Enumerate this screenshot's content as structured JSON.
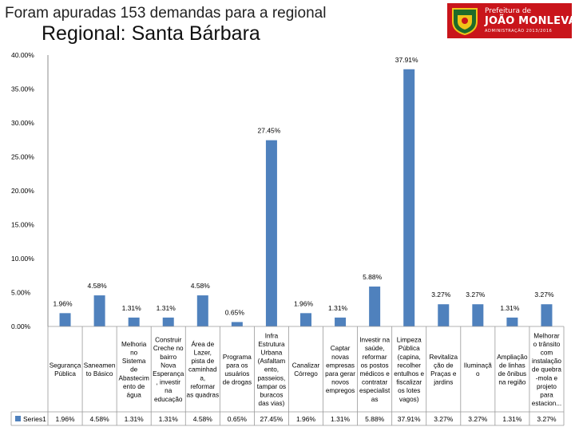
{
  "header": {
    "headline": "Foram apuradas 153 demandas para a regional",
    "title": "Regional: Santa Bárbara"
  },
  "logo": {
    "prefix": "Prefeitura de",
    "city": "JOÃO MONLEVADE",
    "subline": "ADMINISTRAÇÃO 2013/2016"
  },
  "chart_data": {
    "type": "bar",
    "ylim": [
      0,
      40
    ],
    "yticks": [
      0,
      5,
      10,
      15,
      20,
      25,
      30,
      35,
      40
    ],
    "ytick_labels": [
      "0.00%",
      "5.00%",
      "10.00%",
      "15.00%",
      "20.00%",
      "25.00%",
      "30.00%",
      "35.00%",
      "40.00%"
    ],
    "grid": false,
    "legend_position": "bottom-left data table",
    "bar_color": "#4f81bd",
    "categories": [
      "Segurança Pública",
      "Saneamento Básico",
      "Melhoria no Sistema de Abastecimento de água",
      "Construir Creche no bairro Nova Esperança, investir na educação",
      "Área de Lazer, pista de caminhada, reformar as quadras",
      "Programa para os usuários de drogas",
      "Infra Estrutura Urbana (Asfaltamento, passeios, tampar os buracos das vias)",
      "Canalizar Córrego",
      "Captar novas empresas para gerar novos empregos",
      "Investir na saúde, reformar os postos médicos e contratar especialistas",
      "Limpeza Pública (capina, recolher entulhos e fiscalizar os lotes vagos)",
      "Revitalização de Praças e jardins",
      "Iluminação",
      "Ampliação de linhas de ônibus na região",
      "Melhorar o trânsito com instalação de quebra-mola e projeto para estacion..."
    ],
    "category_label_lines": [
      [
        "Segurança",
        "Pública"
      ],
      [
        "Saneamen",
        "to Básico"
      ],
      [
        "Melhoria",
        "no",
        "Sistema",
        "de",
        "Abastecim",
        "ento de",
        "água"
      ],
      [
        "Construir",
        "Creche no",
        "bairro",
        "Nova",
        "Esperança",
        ", investir",
        "na",
        "educação"
      ],
      [
        "Área de",
        "Lazer,",
        "pista de",
        "caminhad",
        "a,",
        "reformar",
        "as quadras"
      ],
      [
        "Programa",
        "para os",
        "usuários",
        "de drogas"
      ],
      [
        "Infra",
        "Estrutura",
        "Urbana",
        "(Asfaltam",
        "ento,",
        "passeios,",
        "tampar os",
        "buracos",
        "das vias)"
      ],
      [
        "Canalizar",
        "Córrego"
      ],
      [
        "Captar",
        "novas",
        "empresas",
        "para gerar",
        "novos",
        "empregos"
      ],
      [
        "Investir na",
        "saúde,",
        "reformar",
        "os postos",
        "médicos e",
        "contratar",
        "especialist",
        "as"
      ],
      [
        "Limpeza",
        "Pública",
        "(capina,",
        "recolher",
        "entulhos e",
        "fiscalizar",
        "os lotes",
        "vagos)"
      ],
      [
        "Revitaliza",
        "ção de",
        "Praças e",
        "jardins"
      ],
      [
        "Iluminaçã",
        "o"
      ],
      [
        "Ampliação",
        "de linhas",
        "de ônibus",
        "na região"
      ],
      [
        "Melhorar",
        "o trânsito",
        "com",
        "instalação",
        "de quebra",
        "-mola e",
        "projeto",
        "para",
        "estacion..."
      ]
    ],
    "series": [
      {
        "name": "Series1",
        "values": [
          1.96,
          4.58,
          1.31,
          1.31,
          4.58,
          0.65,
          27.45,
          1.96,
          1.31,
          5.88,
          37.91,
          3.27,
          3.27,
          1.31,
          3.27
        ],
        "labels": [
          "1.96%",
          "4.58%",
          "1.31%",
          "1.31%",
          "4.58%",
          "0.65%",
          "27.45%",
          "1.96%",
          "1.31%",
          "5.88%",
          "37.91%",
          "3.27%",
          "3.27%",
          "1.31%",
          "3.27%"
        ]
      }
    ]
  }
}
